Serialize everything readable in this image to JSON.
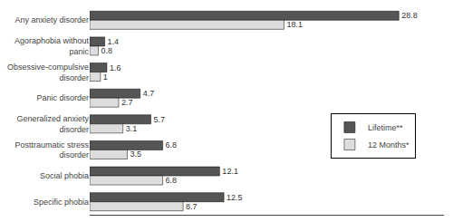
{
  "chart_data": {
    "type": "bar",
    "orientation": "horizontal",
    "categories": [
      "Any anxiety disorder",
      "Agoraphobia without\npanic",
      "Obsessive-compulsive\ndisorder",
      "Panic disorder",
      "Generalized anxiety\ndisorder",
      "Posttraumatic stress\ndisorder",
      "Social phobia",
      "Specific phobia"
    ],
    "series": [
      {
        "name": "Lifetime**",
        "color": "#555555",
        "values": [
          28.8,
          1.4,
          1.6,
          4.7,
          5.7,
          6.8,
          12.1,
          12.5
        ]
      },
      {
        "name": "12 Months*",
        "color": "#dddddd",
        "values": [
          18.1,
          0.8,
          1.0,
          2.7,
          3.1,
          3.5,
          6.8,
          8.7
        ]
      }
    ],
    "xlim": [
      0,
      33
    ],
    "data_labels": true,
    "tick_labels": "y",
    "grid": false,
    "legend": "right"
  }
}
